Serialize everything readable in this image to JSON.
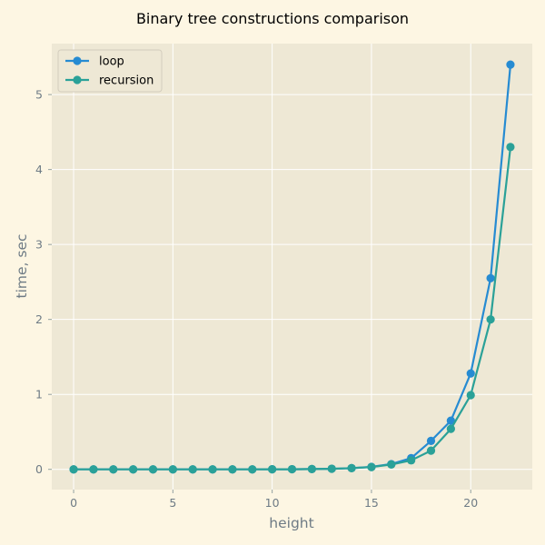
{
  "chart_data": {
    "type": "line",
    "title": "Binary tree constructions comparison",
    "xlabel": "height",
    "ylabel": "time, sec",
    "xlim": [
      -1.1,
      23.1
    ],
    "ylim": [
      -0.27,
      5.68
    ],
    "xticks": [
      "0",
      "5",
      "10",
      "15",
      "20"
    ],
    "yticks": [
      "0",
      "1",
      "2",
      "3",
      "4",
      "5"
    ],
    "grid": true,
    "legend_position": "top-left",
    "x": [
      0,
      1,
      2,
      3,
      4,
      5,
      6,
      7,
      8,
      9,
      10,
      11,
      12,
      13,
      14,
      15,
      16,
      17,
      18,
      19,
      20,
      21,
      22
    ],
    "series": [
      {
        "name": "loop",
        "color": "#268bd2",
        "values": [
          0,
          0,
          0,
          0,
          0,
          0,
          0,
          0,
          0,
          0,
          0.001,
          0.002,
          0.004,
          0.008,
          0.016,
          0.033,
          0.07,
          0.15,
          0.38,
          0.65,
          1.28,
          2.55,
          5.4
        ]
      },
      {
        "name": "recursion",
        "color": "#2aa198",
        "values": [
          0,
          0,
          0,
          0,
          0,
          0,
          0,
          0,
          0,
          0,
          0.001,
          0.002,
          0.004,
          0.008,
          0.016,
          0.03,
          0.065,
          0.12,
          0.25,
          0.54,
          0.99,
          2.0,
          4.3
        ]
      }
    ]
  }
}
